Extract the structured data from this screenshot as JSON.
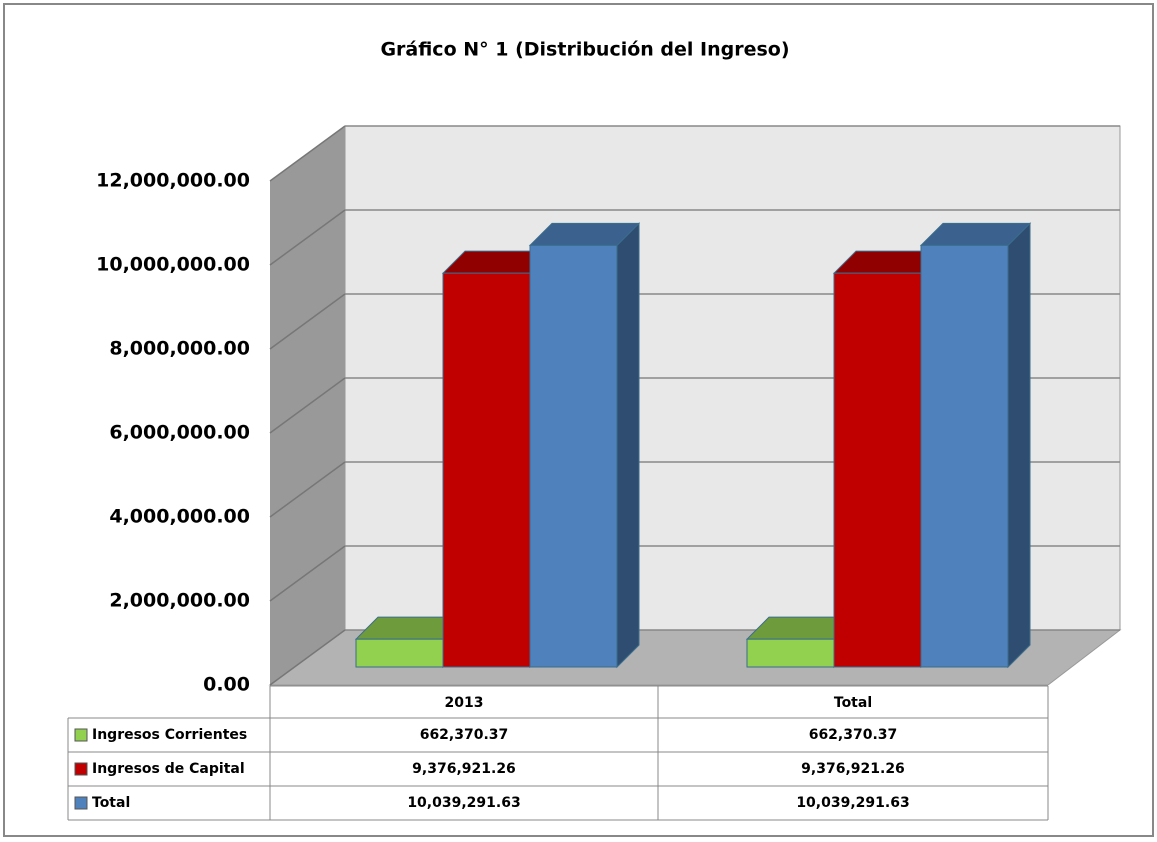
{
  "chart_data": {
    "type": "bar3d",
    "title": "Gráfico N° 1 (Distribución del Ingreso)",
    "categories": [
      "2013",
      "Total"
    ],
    "series": [
      {
        "name": "Ingresos Corrientes",
        "color": "#92d050",
        "values": [
          662370.37,
          662370.37
        ],
        "value_labels": [
          "662,370.37",
          "662,370.37"
        ]
      },
      {
        "name": "Ingresos de Capital",
        "color": "#c00000",
        "values": [
          9376921.26,
          9376921.26
        ],
        "value_labels": [
          "9,376,921.26",
          "9,376,921.26"
        ]
      },
      {
        "name": "Total",
        "color": "#4f81bd",
        "values": [
          10039291.63,
          10039291.63
        ],
        "value_labels": [
          "10,039,291.63",
          "10,039,291.63"
        ]
      }
    ],
    "ylim": [
      0,
      12000000
    ],
    "yticks": [
      {
        "value": 0,
        "label": "0.00"
      },
      {
        "value": 2000000,
        "label": "2,000,000.00"
      },
      {
        "value": 4000000,
        "label": "4,000,000.00"
      },
      {
        "value": 6000000,
        "label": "6,000,000.00"
      },
      {
        "value": 8000000,
        "label": "8,000,000.00"
      },
      {
        "value": 10000000,
        "label": "10,000,000.00"
      },
      {
        "value": 12000000,
        "label": "12,000,000.00"
      }
    ],
    "grid": true
  }
}
